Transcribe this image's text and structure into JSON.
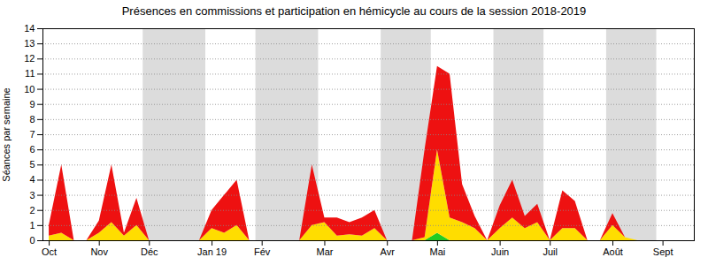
{
  "chart_data": {
    "type": "area",
    "stacked": true,
    "title": "Présences en commissions et participation en hémicycle au cours de la session 2018-2019",
    "ylabel": "Séances par semaine",
    "x": [
      0,
      1,
      2,
      3,
      4,
      5,
      6,
      7,
      8,
      9,
      10,
      11,
      12,
      13,
      14,
      15,
      16,
      17,
      18,
      19,
      20,
      21,
      22,
      23,
      24,
      25,
      26,
      27,
      28,
      29,
      30,
      31,
      32,
      33,
      34,
      35,
      36,
      37,
      38,
      39,
      40,
      41,
      42,
      43,
      44,
      45,
      46,
      47,
      48,
      49,
      50,
      51
    ],
    "xlim": [
      -0.5,
      51.5
    ],
    "xticks": [
      {
        "value": 0,
        "label": "Oct"
      },
      {
        "value": 4,
        "label": "Nov"
      },
      {
        "value": 8,
        "label": "Déc"
      },
      {
        "value": 13,
        "label": "Jan 19"
      },
      {
        "value": 17,
        "label": "Fév"
      },
      {
        "value": 22,
        "label": "Mar"
      },
      {
        "value": 27,
        "label": "Avr"
      },
      {
        "value": 31,
        "label": "Mai"
      },
      {
        "value": 36,
        "label": "Juin"
      },
      {
        "value": 40,
        "label": "Juil"
      },
      {
        "value": 45,
        "label": "Août"
      },
      {
        "value": 49,
        "label": "Sept"
      }
    ],
    "ylim": [
      0,
      14
    ],
    "yticks": [
      0,
      1,
      2,
      3,
      4,
      5,
      6,
      7,
      8,
      9,
      10,
      11,
      12,
      13,
      14
    ],
    "grid": true,
    "bands": [
      [
        7.5,
        12.5
      ],
      [
        16.5,
        21.5
      ],
      [
        26.5,
        30.5
      ],
      [
        35.5,
        39.5
      ],
      [
        44.5,
        48.5
      ]
    ],
    "series": [
      {
        "color": "#22cc22",
        "values": [
          0,
          0,
          0,
          0,
          0,
          0,
          0,
          0,
          0,
          0,
          0,
          0,
          0,
          0,
          0,
          0,
          0,
          0,
          0,
          0,
          0,
          0,
          0,
          0,
          0,
          0,
          0,
          0,
          0,
          0,
          0,
          0.5,
          0,
          0,
          0,
          0,
          0,
          0,
          0,
          0,
          0,
          0,
          0,
          0,
          0,
          0,
          0,
          0,
          0,
          0,
          0,
          0
        ]
      },
      {
        "color": "#ffdd00",
        "values": [
          0.3,
          0.5,
          0,
          0,
          0.5,
          1.2,
          0.3,
          1.0,
          0,
          0,
          0,
          0,
          0,
          0.8,
          0.5,
          1.0,
          0,
          0,
          0,
          0,
          0,
          1.0,
          1.2,
          0.3,
          0.4,
          0.3,
          0.8,
          0,
          0,
          0,
          0.2,
          5.5,
          1.5,
          1.2,
          0.8,
          0,
          0.8,
          1.5,
          0.8,
          1.2,
          0,
          0.8,
          0.8,
          0,
          0,
          1.0,
          0.2,
          0,
          0,
          0,
          0,
          0
        ]
      },
      {
        "color": "#ee1111",
        "values": [
          0.7,
          4.5,
          0,
          0,
          0.8,
          3.8,
          0.2,
          1.8,
          0,
          0,
          0,
          0,
          0,
          1.2,
          2.5,
          3.0,
          0,
          0,
          0,
          0,
          0,
          4.0,
          0.3,
          1.2,
          0.8,
          1.2,
          1.2,
          0,
          0,
          0,
          5.8,
          5.5,
          9.5,
          2.5,
          0.8,
          0,
          1.5,
          2.5,
          0.8,
          1.2,
          0,
          2.5,
          1.8,
          0,
          0,
          0.8,
          0,
          0,
          0,
          0,
          0,
          0
        ]
      }
    ]
  }
}
